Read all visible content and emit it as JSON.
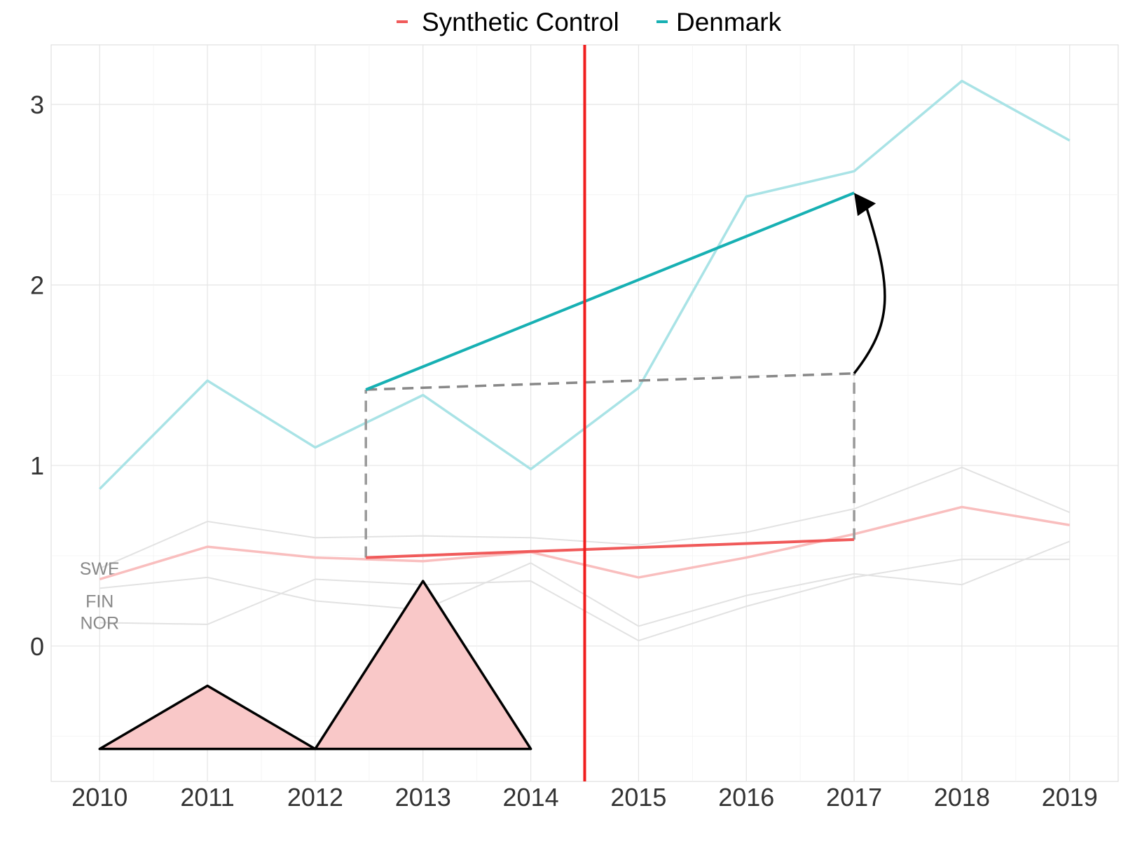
{
  "chart_data": {
    "type": "line",
    "title": "",
    "xlabel": "",
    "ylabel": "",
    "x": [
      2010,
      2011,
      2012,
      2013,
      2014,
      2015,
      2016,
      2017,
      2018,
      2019
    ],
    "x_ticks": [
      "2010",
      "2011",
      "2012",
      "2013",
      "2014",
      "2015",
      "2016",
      "2017",
      "2018",
      "2019"
    ],
    "y_ticks": [
      "0",
      "1",
      "2",
      "3"
    ],
    "xlim": [
      2009.55,
      2019.45
    ],
    "ylim": [
      -0.75,
      3.33
    ],
    "grid": true,
    "legend": {
      "position": "top",
      "entries": [
        {
          "label": "Synthetic Control",
          "color": "#F05A5A"
        },
        {
          "label": "Denmark",
          "color": "#17B0B3"
        }
      ]
    },
    "series": [
      {
        "name": "Denmark",
        "color": "#A9E3E6",
        "values": [
          0.87,
          1.47,
          1.1,
          1.39,
          0.98,
          1.43,
          2.49,
          2.63,
          3.13,
          2.8
        ]
      },
      {
        "name": "Synthetic Control",
        "color": "#F9BEBE",
        "values": [
          0.37,
          0.55,
          0.49,
          0.47,
          0.52,
          0.38,
          0.49,
          0.62,
          0.77,
          0.67
        ]
      }
    ],
    "donor_series": [
      {
        "label": "SWE",
        "color": "#E2E2E2",
        "values": [
          0.43,
          0.69,
          0.6,
          0.61,
          0.6,
          0.56,
          0.63,
          0.76,
          0.99,
          0.74
        ]
      },
      {
        "label": "FIN",
        "color": "#E2E2E2",
        "values": [
          0.32,
          0.38,
          0.25,
          0.2,
          0.46,
          0.11,
          0.28,
          0.4,
          0.34,
          0.58
        ]
      },
      {
        "label": "NOR",
        "color": "#E2E2E2",
        "values": [
          0.13,
          0.12,
          0.37,
          0.34,
          0.36,
          0.03,
          0.22,
          0.38,
          0.48,
          0.48
        ]
      }
    ],
    "treatment_line": {
      "x": 2014.5,
      "color": "#F01E1E"
    },
    "annotations": {
      "denmark_trend": {
        "x": [
          2012.47,
          2017.0
        ],
        "y": [
          1.42,
          2.51
        ],
        "color": "#17B0B3"
      },
      "synthetic_trend": {
        "x": [
          2012.47,
          2017.0
        ],
        "y": [
          0.49,
          0.59
        ],
        "color": "#F05A5A"
      },
      "counterfactual_trend": {
        "x": [
          2012.47,
          2017.0
        ],
        "y": [
          1.42,
          1.51
        ],
        "color": "#888888"
      },
      "dashed_verticals": [
        {
          "x": 2012.47,
          "y": [
            0.49,
            1.42
          ]
        },
        {
          "x": 2017.0,
          "y": [
            0.59,
            1.51
          ]
        }
      ],
      "arrow": {
        "from": [
          2017.0,
          1.51
        ],
        "to": [
          2017.0,
          2.51
        ],
        "color": "#000000"
      },
      "weight_triangles": {
        "baseline": -0.57,
        "fill": "#F9C8C8",
        "items": [
          {
            "x": [
              2010,
              2011,
              2012
            ],
            "peak": -0.22
          },
          {
            "x": [
              2012,
              2013,
              2014
            ],
            "peak": 0.36
          }
        ]
      }
    }
  }
}
